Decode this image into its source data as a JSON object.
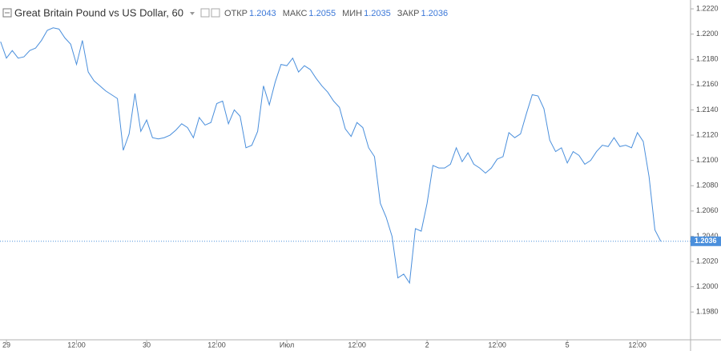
{
  "chart_data": {
    "type": "line",
    "title": "Great Britain Pound vs US Dollar, 60",
    "stats": [
      {
        "label": "ОТКР",
        "value": 1.2043
      },
      {
        "label": "МАКС",
        "value": 1.2055
      },
      {
        "label": "МИН",
        "value": 1.2035
      },
      {
        "label": "ЗАКР",
        "value": 1.2036
      }
    ],
    "x": [
      -1,
      0,
      1,
      2,
      3,
      4,
      5,
      6,
      7,
      8,
      9,
      10,
      11,
      12,
      13,
      14,
      15,
      16,
      17,
      18,
      19,
      20,
      21,
      22,
      23,
      24,
      25,
      26,
      27,
      28,
      29,
      30,
      31,
      32,
      33,
      34,
      35,
      36,
      37,
      38,
      39,
      40,
      41,
      42,
      43,
      44,
      45,
      46,
      47,
      48,
      49,
      50,
      51,
      52,
      53,
      54,
      55,
      56,
      57,
      58,
      59,
      60,
      61,
      62,
      63,
      64,
      65,
      66,
      67,
      68,
      69,
      70,
      71,
      72,
      73,
      74,
      75,
      76,
      77,
      78,
      79,
      80,
      81,
      82,
      83,
      84,
      85,
      86,
      87,
      88,
      89,
      90,
      91,
      92,
      93,
      94,
      95,
      96,
      97,
      98,
      99,
      100,
      101,
      102,
      103,
      104,
      105,
      106,
      107,
      108,
      109,
      110,
      111,
      112
    ],
    "series": [
      {
        "color": "#4a8fdc",
        "values": [
          1.2194,
          1.2181,
          1.2187,
          1.2181,
          1.2182,
          1.2187,
          1.2189,
          1.2195,
          1.2203,
          1.2205,
          1.2204,
          1.2197,
          1.2192,
          1.2176,
          1.2195,
          1.217,
          1.2163,
          1.2159,
          1.2155,
          1.2152,
          1.2149,
          1.2108,
          1.2121,
          1.2153,
          1.2123,
          1.2132,
          1.2118,
          1.2117,
          1.2118,
          1.212,
          1.2124,
          1.2129,
          1.2126,
          1.2118,
          1.2134,
          1.2128,
          1.213,
          1.2145,
          1.2147,
          1.2129,
          1.214,
          1.2135,
          1.211,
          1.2112,
          1.2123,
          1.2159,
          1.2144,
          1.2162,
          1.2176,
          1.2175,
          1.2181,
          1.217,
          1.2175,
          1.2172,
          1.2165,
          1.2159,
          1.2154,
          1.2147,
          1.2142,
          1.2125,
          1.2119,
          1.213,
          1.2126,
          1.211,
          1.2103,
          1.2066,
          1.2055,
          1.204,
          1.2007,
          1.201,
          1.2003,
          1.2046,
          1.2044,
          1.2066,
          1.2096,
          1.2094,
          1.2094,
          1.2097,
          1.211,
          1.2099,
          1.2106,
          1.2097,
          1.2094,
          1.209,
          1.2094,
          1.2101,
          1.2103,
          1.2122,
          1.2118,
          1.2121,
          1.2137,
          1.2152,
          1.2151,
          1.2141,
          1.2116,
          1.2107,
          1.211,
          1.2098,
          1.2107,
          1.2104,
          1.2097,
          1.21,
          1.2107,
          1.2112,
          1.2111,
          1.2118,
          1.2111,
          1.2112,
          1.211,
          1.2122,
          1.2115,
          1.2087,
          1.2045,
          1.2036
        ]
      }
    ],
    "price_line": 1.2036,
    "xlim": [
      -1.1,
      117.1
    ],
    "xticks": [
      {
        "value": 0,
        "label": "29"
      },
      {
        "value": 12,
        "label": "12:00"
      },
      {
        "value": 24,
        "label": "30"
      },
      {
        "value": 36,
        "label": "12:00"
      },
      {
        "value": 48,
        "label": "Июл"
      },
      {
        "value": 60,
        "label": "12:00"
      },
      {
        "value": 72,
        "label": "2"
      },
      {
        "value": 84,
        "label": "12:00"
      },
      {
        "value": 96,
        "label": "5"
      },
      {
        "value": 108,
        "label": "12:00"
      }
    ],
    "ylim": [
      1.1958,
      1.2227
    ],
    "yticks": [
      {
        "value": 1.198,
        "label": "1.1980"
      },
      {
        "value": 1.2,
        "label": "1.2000"
      },
      {
        "value": 1.202,
        "label": "1.2020"
      },
      {
        "value": 1.204,
        "label": "1.2040"
      },
      {
        "value": 1.206,
        "label": "1.2060"
      },
      {
        "value": 1.208,
        "label": "1.2080"
      },
      {
        "value": 1.21,
        "label": "1.2100"
      },
      {
        "value": 1.212,
        "label": "1.2120"
      },
      {
        "value": 1.214,
        "label": "1.2140"
      },
      {
        "value": 1.216,
        "label": "1.2160"
      },
      {
        "value": 1.218,
        "label": "1.2180"
      },
      {
        "value": 1.22,
        "label": "1.2200"
      },
      {
        "value": 1.222,
        "label": "1.2220"
      }
    ],
    "grid": false
  }
}
